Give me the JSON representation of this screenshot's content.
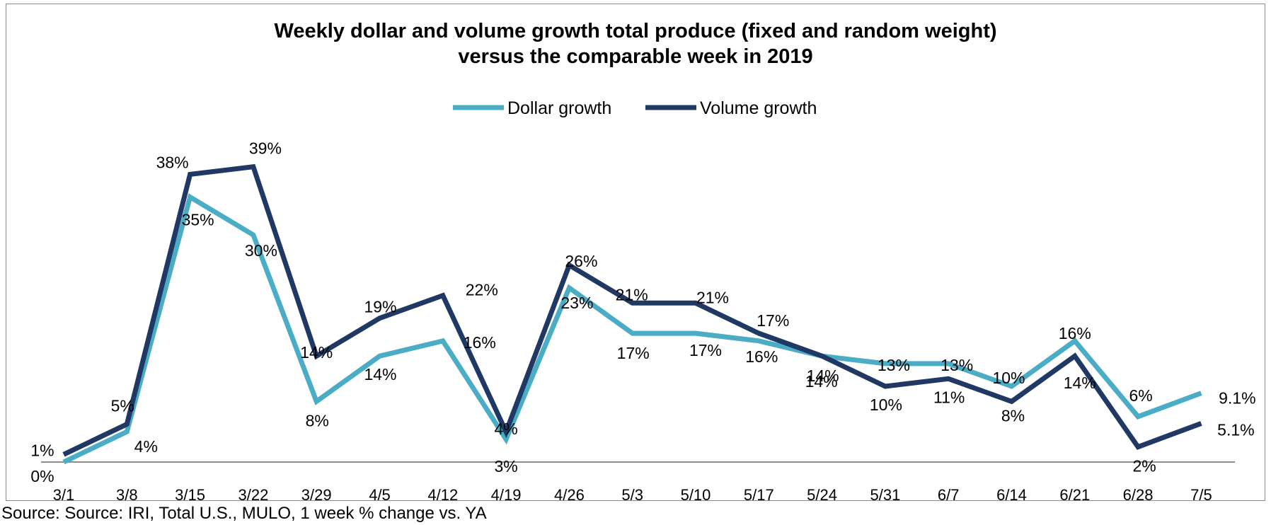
{
  "chart_data": {
    "type": "line",
    "title_line1": "Weekly dollar and volume growth  total produce (fixed and random weight)",
    "title_line2": "versus the comparable week in 2019",
    "categories": [
      "3/1",
      "3/8",
      "3/15",
      "3/22",
      "3/29",
      "4/5",
      "4/12",
      "4/19",
      "4/26",
      "5/3",
      "5/10",
      "5/17",
      "5/24",
      "5/31",
      "6/7",
      "6/14",
      "6/21",
      "6/28",
      "7/5"
    ],
    "ylim": [
      0,
      42
    ],
    "series": [
      {
        "name": "Dollar growth",
        "color": "#4bacc6",
        "values": [
          0,
          4,
          35,
          30,
          8,
          14,
          16,
          3,
          23,
          17,
          17,
          16,
          14,
          13,
          13,
          10,
          16,
          6,
          9.1
        ],
        "labels": [
          "0%",
          "4%",
          "35%",
          "30%",
          "8%",
          "14%",
          "16%",
          "3%",
          "23%",
          "17%",
          "17%",
          "16%",
          "14%",
          "13%",
          "13%",
          "10%",
          "16%",
          "6%",
          "9.1%"
        ]
      },
      {
        "name": "Volume growth",
        "color": "#1f3864",
        "values": [
          1,
          5,
          38,
          39,
          14,
          19,
          22,
          4,
          26,
          21,
          21,
          17,
          14,
          10,
          11,
          8,
          14,
          2,
          5.1
        ],
        "labels": [
          "1%",
          "5%",
          "38%",
          "39%",
          "14%",
          "19%",
          "22%",
          "4%",
          "26%",
          "21%",
          "21%",
          "17%",
          "14%",
          "10%",
          "11%",
          "8%",
          "14%",
          "2%",
          "5.1%"
        ]
      }
    ],
    "legend_position": "top-center",
    "grid": false
  },
  "source": "Source: Source: IRI, Total U.S., MULO, 1 week % change vs. YA"
}
